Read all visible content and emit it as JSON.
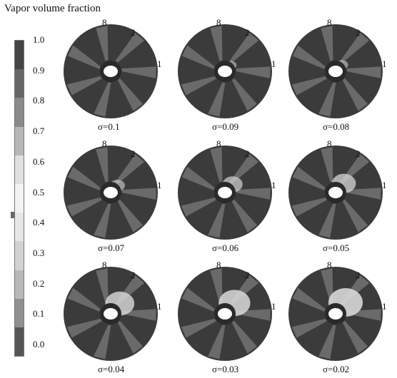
{
  "title": "Vapor volume fraction",
  "legend": {
    "ticks": [
      "1.0",
      "0.9",
      "0.8",
      "0.7",
      "0.6",
      "0.5",
      "0.4",
      "0.3",
      "0.2",
      "0.1",
      "0.0"
    ],
    "bands": [
      "#444444",
      "#666666",
      "#8a8a8a",
      "#b7b7b7",
      "#e0e0e0",
      "#f3f3f3",
      "#e6e6e6",
      "#d2d2d2",
      "#b8b8b8",
      "#8f8f8f",
      "#555555"
    ]
  },
  "panels": [
    {
      "sigma": "σ=0.1",
      "blade_labels": [
        "8",
        "2",
        "1"
      ],
      "cav": 0.0
    },
    {
      "sigma": "σ=0.09",
      "blade_labels": [
        "8",
        "2",
        "1"
      ],
      "cav": 0.1
    },
    {
      "sigma": "σ=0.08",
      "blade_labels": [
        "8",
        "2",
        "1"
      ],
      "cav": 0.15
    },
    {
      "sigma": "σ=0.07",
      "blade_labels": [
        "8",
        "2",
        "1"
      ],
      "cav": 0.25
    },
    {
      "sigma": "σ=0.06",
      "blade_labels": [
        "8",
        "2",
        "1"
      ],
      "cav": 0.45
    },
    {
      "sigma": "σ=0.05",
      "blade_labels": [
        "8",
        "2",
        "1"
      ],
      "cav": 0.6
    },
    {
      "sigma": "σ=0.04",
      "blade_labels": [
        "8",
        "2",
        "1"
      ],
      "cav": 0.8
    },
    {
      "sigma": "σ=0.03",
      "blade_labels": [
        "8",
        "2",
        "1"
      ],
      "cav": 0.9
    },
    {
      "sigma": "σ=0.02",
      "blade_labels": [
        "8",
        "2",
        "1"
      ],
      "cav": 1.0
    }
  ]
}
